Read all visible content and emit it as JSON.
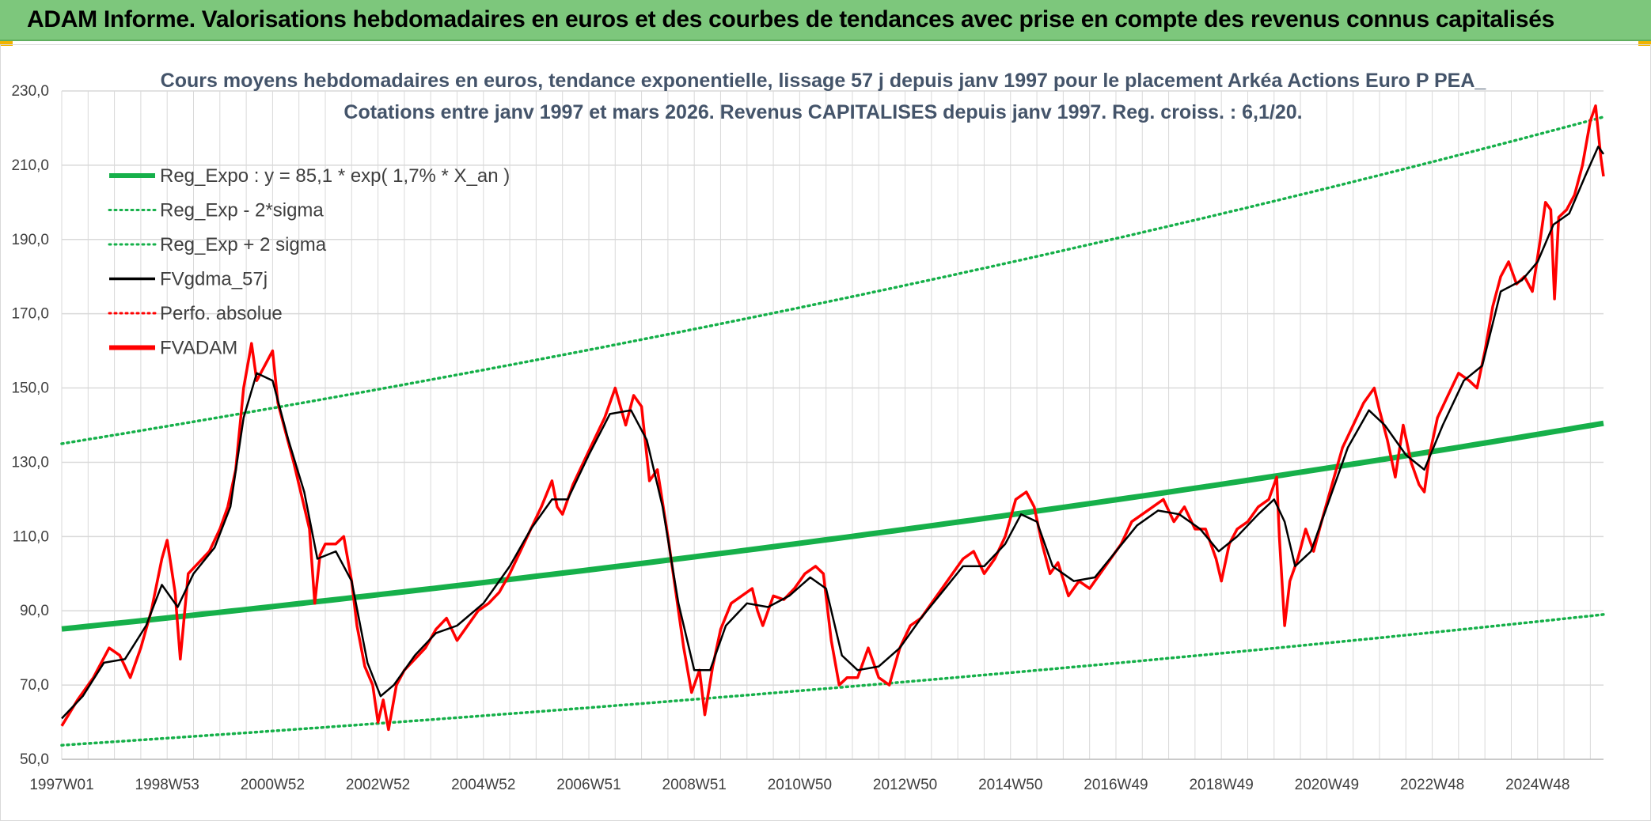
{
  "header": {
    "title": "ADAM Informe. Valorisations hebdomadaires en euros et des courbes de tendances avec prise en compte des revenus connus capitalisés"
  },
  "colors": {
    "header_bg": "#7dc77c",
    "trend_green": "#16b04a",
    "fv_black": "#000000",
    "adam_red": "#ff0000",
    "grid": "#d9d9d9"
  },
  "chart_data": {
    "type": "line",
    "title_lines": [
      "Cours moyens hebdomadaires en euros, tendance exponentielle, lissage 57 j depuis janv 1997 pour le placement Arkéa  Actions Euro P PEA_",
      "Cotations entre janv 1997 et mars 2026. Revenus CAPITALISES depuis janv 1997. Reg. croiss. : 6,1/20."
    ],
    "xlabel": "",
    "ylabel": "",
    "x_range": [
      1997.0,
      2026.25
    ],
    "ylim": [
      50,
      230
    ],
    "y_ticks": [
      50,
      70,
      90,
      110,
      130,
      150,
      170,
      190,
      210,
      230
    ],
    "y_tick_labels": [
      "50,0",
      "70,0",
      "90,0",
      "110,0",
      "130,0",
      "150,0",
      "170,0",
      "190,0",
      "210,0",
      "230,0"
    ],
    "x_ticks": [
      {
        "label": "1997W01",
        "x": 1997.0
      },
      {
        "label": "1998W53",
        "x": 1999.0
      },
      {
        "label": "2000W52",
        "x": 2001.0
      },
      {
        "label": "2002W52",
        "x": 2003.0
      },
      {
        "label": "2004W52",
        "x": 2005.0
      },
      {
        "label": "2006W51",
        "x": 2007.0
      },
      {
        "label": "2008W51",
        "x": 2009.0
      },
      {
        "label": "2010W50",
        "x": 2011.0
      },
      {
        "label": "2012W50",
        "x": 2013.0
      },
      {
        "label": "2014W50",
        "x": 2015.0
      },
      {
        "label": "2016W49",
        "x": 2017.0
      },
      {
        "label": "2018W49",
        "x": 2019.0
      },
      {
        "label": "2020W49",
        "x": 2021.0
      },
      {
        "label": "2022W48",
        "x": 2023.0
      },
      {
        "label": "2024W48",
        "x": 2025.0
      }
    ],
    "grid": true,
    "legend_position": "top-left",
    "legend": [
      {
        "label": "Reg_Expo : y = 85,1 * exp( 1,7% *  X_an )",
        "color": "#16b04a",
        "style": "solid-thick"
      },
      {
        "label": "Reg_Exp - 2*sigma",
        "color": "#16b04a",
        "style": "dotted"
      },
      {
        "label": "Reg_Exp + 2 sigma",
        "color": "#16b04a",
        "style": "dotted"
      },
      {
        "label": "FVgdma_57j",
        "color": "#000000",
        "style": "solid"
      },
      {
        "label": "Perfo. absolue",
        "color": "#ff0000",
        "style": "dotted"
      },
      {
        "label": "FVADAM",
        "color": "#ff0000",
        "style": "solid-thick"
      }
    ],
    "trend_lines": {
      "reg_expo": [
        [
          1997.0,
          85.1
        ],
        [
          2026.25,
          140.5
        ]
      ],
      "reg_minus_2sigma": [
        [
          1997.0,
          53.8
        ],
        [
          2026.25,
          89.0
        ]
      ],
      "reg_plus_2sigma": [
        [
          1997.0,
          135.0
        ],
        [
          2026.25,
          223.0
        ]
      ]
    },
    "series": [
      {
        "name": "FVADAM",
        "points": [
          [
            1997.0,
            59
          ],
          [
            1997.3,
            66
          ],
          [
            1997.6,
            72
          ],
          [
            1997.9,
            80
          ],
          [
            1998.1,
            78
          ],
          [
            1998.3,
            72
          ],
          [
            1998.5,
            80
          ],
          [
            1998.7,
            90
          ],
          [
            1998.9,
            104
          ],
          [
            1999.0,
            109
          ],
          [
            1999.15,
            95
          ],
          [
            1999.25,
            77
          ],
          [
            1999.4,
            100
          ],
          [
            1999.6,
            103
          ],
          [
            1999.8,
            106
          ],
          [
            2000.0,
            112
          ],
          [
            2000.15,
            118
          ],
          [
            2000.3,
            128
          ],
          [
            2000.45,
            150
          ],
          [
            2000.6,
            162
          ],
          [
            2000.7,
            152
          ],
          [
            2000.85,
            156
          ],
          [
            2001.0,
            160
          ],
          [
            2001.1,
            146
          ],
          [
            2001.25,
            138
          ],
          [
            2001.4,
            130
          ],
          [
            2001.5,
            124
          ],
          [
            2001.6,
            118
          ],
          [
            2001.7,
            112
          ],
          [
            2001.8,
            92
          ],
          [
            2001.9,
            105
          ],
          [
            2002.0,
            108
          ],
          [
            2002.2,
            108
          ],
          [
            2002.35,
            110
          ],
          [
            2002.5,
            98
          ],
          [
            2002.6,
            86
          ],
          [
            2002.75,
            75
          ],
          [
            2002.9,
            70
          ],
          [
            2003.0,
            60
          ],
          [
            2003.1,
            66
          ],
          [
            2003.2,
            58
          ],
          [
            2003.35,
            70
          ],
          [
            2003.5,
            74
          ],
          [
            2003.7,
            77
          ],
          [
            2003.9,
            80
          ],
          [
            2004.1,
            85
          ],
          [
            2004.3,
            88
          ],
          [
            2004.5,
            82
          ],
          [
            2004.7,
            86
          ],
          [
            2004.9,
            90
          ],
          [
            2005.1,
            92
          ],
          [
            2005.3,
            95
          ],
          [
            2005.5,
            100
          ],
          [
            2005.7,
            106
          ],
          [
            2005.9,
            112
          ],
          [
            2006.1,
            118
          ],
          [
            2006.3,
            125
          ],
          [
            2006.4,
            118
          ],
          [
            2006.5,
            116
          ],
          [
            2006.7,
            124
          ],
          [
            2006.9,
            130
          ],
          [
            2007.1,
            136
          ],
          [
            2007.3,
            142
          ],
          [
            2007.5,
            150
          ],
          [
            2007.7,
            140
          ],
          [
            2007.85,
            148
          ],
          [
            2008.0,
            145
          ],
          [
            2008.15,
            125
          ],
          [
            2008.3,
            128
          ],
          [
            2008.5,
            110
          ],
          [
            2008.65,
            95
          ],
          [
            2008.8,
            80
          ],
          [
            2008.95,
            68
          ],
          [
            2009.1,
            74
          ],
          [
            2009.2,
            62
          ],
          [
            2009.35,
            75
          ],
          [
            2009.5,
            85
          ],
          [
            2009.7,
            92
          ],
          [
            2009.9,
            94
          ],
          [
            2010.1,
            96
          ],
          [
            2010.2,
            90
          ],
          [
            2010.3,
            86
          ],
          [
            2010.5,
            94
          ],
          [
            2010.7,
            93
          ],
          [
            2010.9,
            96
          ],
          [
            2011.1,
            100
          ],
          [
            2011.3,
            102
          ],
          [
            2011.45,
            100
          ],
          [
            2011.6,
            82
          ],
          [
            2011.75,
            70
          ],
          [
            2011.9,
            72
          ],
          [
            2012.1,
            72
          ],
          [
            2012.3,
            80
          ],
          [
            2012.5,
            72
          ],
          [
            2012.7,
            70
          ],
          [
            2012.9,
            80
          ],
          [
            2013.1,
            86
          ],
          [
            2013.3,
            88
          ],
          [
            2013.5,
            92
          ],
          [
            2013.7,
            96
          ],
          [
            2013.9,
            100
          ],
          [
            2014.1,
            104
          ],
          [
            2014.3,
            106
          ],
          [
            2014.5,
            100
          ],
          [
            2014.7,
            104
          ],
          [
            2014.9,
            110
          ],
          [
            2015.1,
            120
          ],
          [
            2015.3,
            122
          ],
          [
            2015.45,
            118
          ],
          [
            2015.6,
            108
          ],
          [
            2015.75,
            100
          ],
          [
            2015.9,
            103
          ],
          [
            2016.1,
            94
          ],
          [
            2016.3,
            98
          ],
          [
            2016.5,
            96
          ],
          [
            2016.7,
            100
          ],
          [
            2016.9,
            104
          ],
          [
            2017.1,
            108
          ],
          [
            2017.3,
            114
          ],
          [
            2017.5,
            116
          ],
          [
            2017.7,
            118
          ],
          [
            2017.9,
            120
          ],
          [
            2018.1,
            114
          ],
          [
            2018.3,
            118
          ],
          [
            2018.5,
            112
          ],
          [
            2018.7,
            112
          ],
          [
            2018.9,
            104
          ],
          [
            2019.0,
            98
          ],
          [
            2019.15,
            108
          ],
          [
            2019.3,
            112
          ],
          [
            2019.5,
            114
          ],
          [
            2019.7,
            118
          ],
          [
            2019.9,
            120
          ],
          [
            2020.05,
            126
          ],
          [
            2020.1,
            110
          ],
          [
            2020.2,
            86
          ],
          [
            2020.3,
            98
          ],
          [
            2020.45,
            104
          ],
          [
            2020.6,
            112
          ],
          [
            2020.75,
            106
          ],
          [
            2020.9,
            114
          ],
          [
            2021.1,
            124
          ],
          [
            2021.3,
            134
          ],
          [
            2021.5,
            140
          ],
          [
            2021.7,
            146
          ],
          [
            2021.9,
            150
          ],
          [
            2022.0,
            144
          ],
          [
            2022.15,
            136
          ],
          [
            2022.3,
            126
          ],
          [
            2022.45,
            140
          ],
          [
            2022.6,
            130
          ],
          [
            2022.75,
            124
          ],
          [
            2022.85,
            122
          ],
          [
            2022.95,
            132
          ],
          [
            2023.1,
            142
          ],
          [
            2023.3,
            148
          ],
          [
            2023.5,
            154
          ],
          [
            2023.7,
            152
          ],
          [
            2023.85,
            150
          ],
          [
            2024.0,
            160
          ],
          [
            2024.15,
            172
          ],
          [
            2024.3,
            180
          ],
          [
            2024.45,
            184
          ],
          [
            2024.6,
            178
          ],
          [
            2024.75,
            180
          ],
          [
            2024.9,
            176
          ],
          [
            2025.05,
            190
          ],
          [
            2025.15,
            200
          ],
          [
            2025.25,
            198
          ],
          [
            2025.32,
            174
          ],
          [
            2025.4,
            196
          ],
          [
            2025.55,
            198
          ],
          [
            2025.7,
            202
          ],
          [
            2025.85,
            210
          ],
          [
            2026.0,
            222
          ],
          [
            2026.1,
            226
          ],
          [
            2026.2,
            212
          ],
          [
            2026.25,
            207
          ]
        ]
      },
      {
        "name": "FVgdma_57j",
        "points": [
          [
            1997.0,
            61
          ],
          [
            1997.4,
            67
          ],
          [
            1997.8,
            76
          ],
          [
            1998.2,
            77
          ],
          [
            1998.6,
            86
          ],
          [
            1998.9,
            97
          ],
          [
            1999.2,
            91
          ],
          [
            1999.5,
            100
          ],
          [
            1999.9,
            107
          ],
          [
            2000.2,
            118
          ],
          [
            2000.45,
            142
          ],
          [
            2000.7,
            154
          ],
          [
            2001.0,
            152
          ],
          [
            2001.3,
            136
          ],
          [
            2001.6,
            122
          ],
          [
            2001.85,
            104
          ],
          [
            2002.2,
            106
          ],
          [
            2002.5,
            98
          ],
          [
            2002.8,
            76
          ],
          [
            2003.05,
            67
          ],
          [
            2003.3,
            70
          ],
          [
            2003.7,
            78
          ],
          [
            2004.1,
            84
          ],
          [
            2004.5,
            86
          ],
          [
            2005.0,
            92
          ],
          [
            2005.5,
            102
          ],
          [
            2005.9,
            112
          ],
          [
            2006.3,
            120
          ],
          [
            2006.6,
            120
          ],
          [
            2007.0,
            132
          ],
          [
            2007.4,
            143
          ],
          [
            2007.8,
            144
          ],
          [
            2008.1,
            136
          ],
          [
            2008.4,
            118
          ],
          [
            2008.7,
            92
          ],
          [
            2009.0,
            74
          ],
          [
            2009.3,
            74
          ],
          [
            2009.6,
            86
          ],
          [
            2010.0,
            92
          ],
          [
            2010.4,
            91
          ],
          [
            2010.8,
            94
          ],
          [
            2011.2,
            99
          ],
          [
            2011.5,
            96
          ],
          [
            2011.8,
            78
          ],
          [
            2012.1,
            74
          ],
          [
            2012.5,
            75
          ],
          [
            2012.9,
            80
          ],
          [
            2013.3,
            88
          ],
          [
            2013.7,
            95
          ],
          [
            2014.1,
            102
          ],
          [
            2014.5,
            102
          ],
          [
            2014.9,
            108
          ],
          [
            2015.2,
            116
          ],
          [
            2015.5,
            114
          ],
          [
            2015.8,
            102
          ],
          [
            2016.2,
            98
          ],
          [
            2016.6,
            99
          ],
          [
            2017.0,
            106
          ],
          [
            2017.4,
            113
          ],
          [
            2017.8,
            117
          ],
          [
            2018.2,
            116
          ],
          [
            2018.6,
            112
          ],
          [
            2018.95,
            106
          ],
          [
            2019.3,
            110
          ],
          [
            2019.7,
            116
          ],
          [
            2020.0,
            120
          ],
          [
            2020.2,
            114
          ],
          [
            2020.4,
            102
          ],
          [
            2020.7,
            106
          ],
          [
            2021.0,
            118
          ],
          [
            2021.4,
            134
          ],
          [
            2021.8,
            144
          ],
          [
            2022.1,
            140
          ],
          [
            2022.5,
            132
          ],
          [
            2022.85,
            128
          ],
          [
            2023.2,
            140
          ],
          [
            2023.6,
            152
          ],
          [
            2023.95,
            156
          ],
          [
            2024.3,
            176
          ],
          [
            2024.7,
            179
          ],
          [
            2025.0,
            184
          ],
          [
            2025.3,
            194
          ],
          [
            2025.6,
            197
          ],
          [
            2025.9,
            207
          ],
          [
            2026.15,
            215
          ],
          [
            2026.25,
            213
          ]
        ]
      }
    ]
  }
}
